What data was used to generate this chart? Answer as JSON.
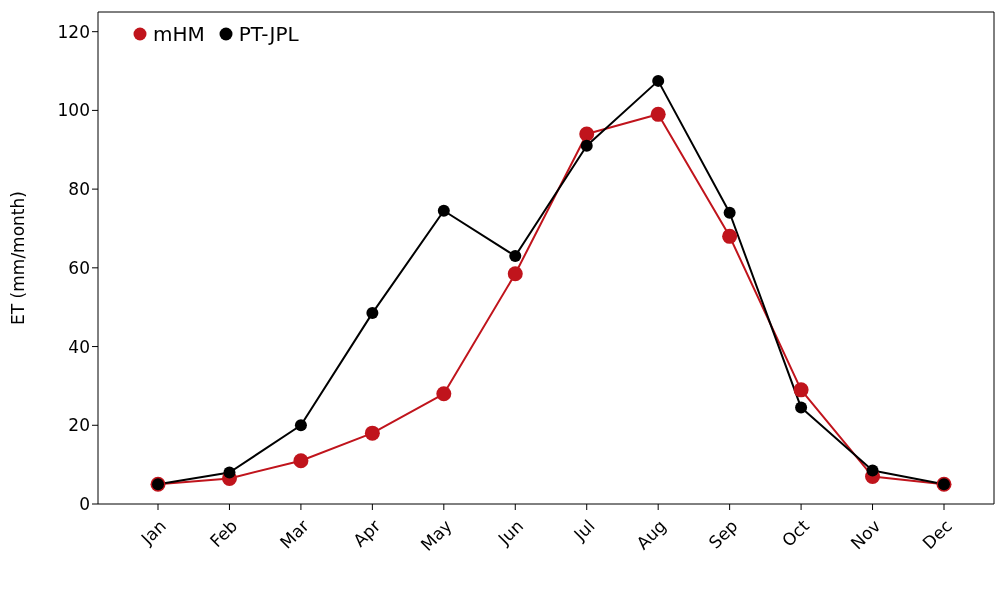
{
  "chart_data": {
    "type": "line",
    "ylabel": "ET (mm/month)",
    "categories": [
      "Jan",
      "Feb",
      "Mar",
      "Apr",
      "May",
      "Jun",
      "Jul",
      "Aug",
      "Sep",
      "Oct",
      "Nov",
      "Dec"
    ],
    "series": [
      {
        "name": "mHM",
        "color": "#c0141c",
        "values": [
          5,
          6.5,
          11,
          18,
          28,
          58.5,
          94,
          99,
          68,
          29,
          7,
          5
        ]
      },
      {
        "name": "PT-JPL",
        "color": "#000000",
        "values": [
          5,
          8,
          20,
          48.5,
          74.5,
          63,
          91,
          107.5,
          74,
          24.5,
          8.5,
          5
        ]
      }
    ],
    "ylim": [
      0,
      125
    ],
    "yticks": [
      0,
      20,
      40,
      60,
      80,
      100,
      120
    ],
    "grid": false,
    "legend": "top left",
    "marker": "circle",
    "line_style": "solid"
  }
}
